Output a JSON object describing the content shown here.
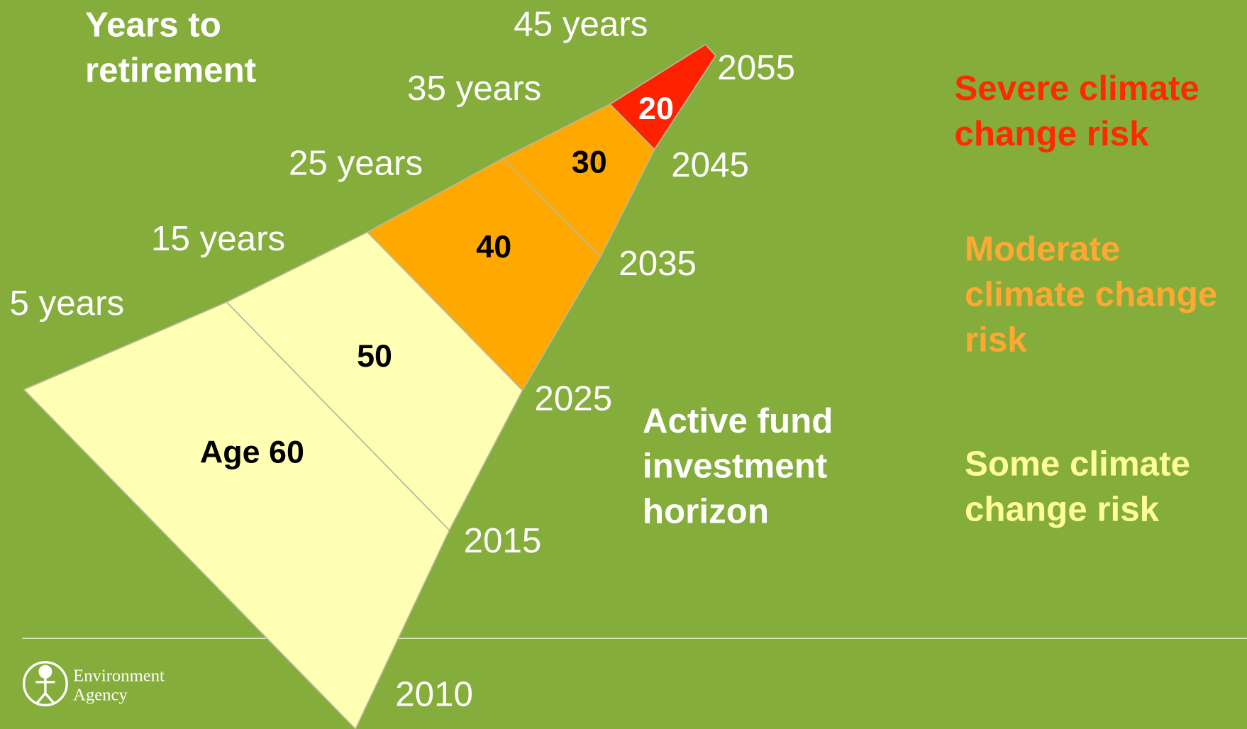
{
  "title": [
    "Years to",
    "retirement"
  ],
  "segments": [
    {
      "label": "Age 60",
      "color": "#ffffb3"
    },
    {
      "label": "50",
      "color": "#ffffb3"
    },
    {
      "label": "40",
      "color": "#ffa800"
    },
    {
      "label": "30",
      "color": "#ffa800"
    },
    {
      "label": "20",
      "color": "#ff2200"
    }
  ],
  "years": [
    "5 years",
    "15 years",
    "25 years",
    "35 years",
    "45 years"
  ],
  "dates": [
    "2010",
    "2015",
    "2025",
    "2035",
    "2045",
    "2055"
  ],
  "horizon": [
    "Active fund",
    "investment",
    "horizon"
  ],
  "legend": [
    {
      "lines": [
        "Severe climate",
        "change risk"
      ],
      "color": "#ff2a00"
    },
    {
      "lines": [
        "Moderate",
        "climate change",
        "risk"
      ],
      "color": "#ffa833"
    },
    {
      "lines": [
        "Some climate",
        "change risk"
      ],
      "color": "#ffff99"
    }
  ],
  "logo": [
    "Environment",
    "Agency"
  ]
}
